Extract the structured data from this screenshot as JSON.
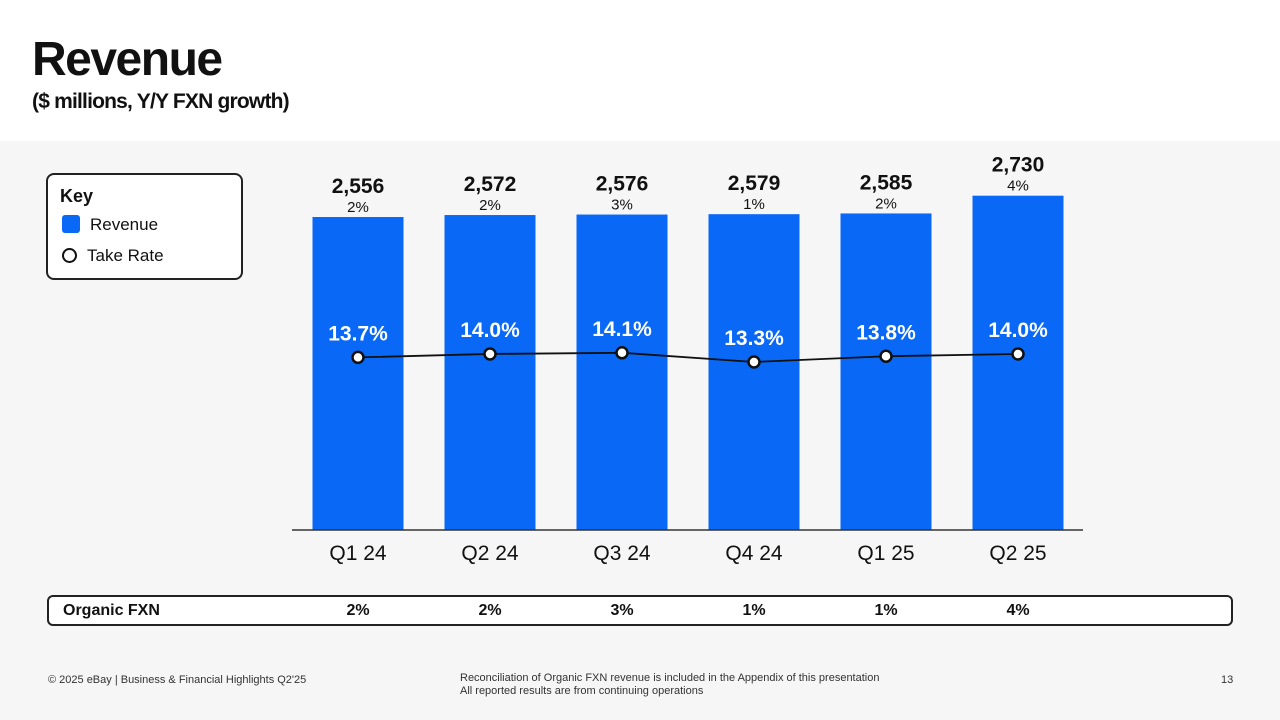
{
  "header": {
    "title": "Revenue",
    "subtitle": "($ millions, Y/Y FXN growth)"
  },
  "legend": {
    "title": "Key",
    "items": [
      {
        "label": "Revenue",
        "icon": "blue-square-swatch"
      },
      {
        "label": "Take Rate",
        "icon": "circle-marker-swatch"
      }
    ]
  },
  "colors": {
    "bar": "#0968f6",
    "line": "#111111",
    "marker_fill": "#ffffff"
  },
  "chart_data": {
    "type": "bar",
    "categories": [
      "Q1 24",
      "Q2 24",
      "Q3 24",
      "Q4 24",
      "Q1 25",
      "Q2 25"
    ],
    "series": [
      {
        "name": "Revenue",
        "values": [
          2556,
          2572,
          2576,
          2579,
          2585,
          2730
        ],
        "labels": [
          "2,556",
          "2,572",
          "2,576",
          "2,579",
          "2,585",
          "2,730"
        ],
        "growth_labels": [
          "2%",
          "2%",
          "3%",
          "1%",
          "2%",
          "4%"
        ]
      },
      {
        "name": "Take Rate",
        "type": "line",
        "values": [
          13.7,
          14.0,
          14.1,
          13.3,
          13.8,
          14.0
        ],
        "labels": [
          "13.7%",
          "14.0%",
          "14.1%",
          "13.3%",
          "13.8%",
          "14.0%"
        ]
      }
    ],
    "title": "Revenue",
    "ylabel": "$ millions",
    "grid": false
  },
  "organic_fxn": {
    "label": "Organic FXN",
    "values": [
      "2%",
      "2%",
      "3%",
      "1%",
      "1%",
      "4%"
    ]
  },
  "footer": {
    "copyright": "© 2025 eBay | Business & Financial Highlights Q2'25",
    "note_line1": "Reconciliation of Organic FXN revenue is included in the Appendix of this presentation",
    "note_line2": "All reported results are from continuing operations",
    "page_number": "13"
  }
}
